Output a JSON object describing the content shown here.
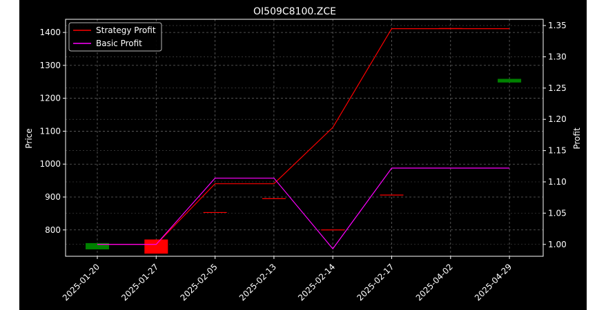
{
  "chart_data": {
    "type": "candlestick+line",
    "title": "OI509C8100.ZCE",
    "ylabel_left": "Price",
    "ylabel_right": "Profit",
    "categories": [
      "2025-01-20",
      "2025-01-27",
      "2025-02-05",
      "2025-02-13",
      "2025-02-14",
      "2025-02-17",
      "2025-04-02",
      "2025-04-29"
    ],
    "ylim_left": [
      720,
      1440
    ],
    "yticks_left": [
      800,
      900,
      1000,
      1100,
      1200,
      1300,
      1400
    ],
    "ylim_right": [
      0.981,
      1.36
    ],
    "yticks_right": [
      1.0,
      1.05,
      1.1,
      1.15,
      1.2,
      1.25,
      1.3,
      1.35
    ],
    "grid": true,
    "legend_position": "top-left",
    "candles": [
      {
        "x": "2025-01-20",
        "open": 760,
        "close": 741,
        "color": "#008000"
      },
      {
        "x": "2025-01-27",
        "open": 771,
        "close": 728,
        "color": "#ff0000"
      },
      {
        "x": "2025-02-05",
        "open": 853,
        "close": 853,
        "color": "#ff0000"
      },
      {
        "x": "2025-02-13",
        "open": 895,
        "close": 895,
        "color": "#ff0000"
      },
      {
        "x": "2025-02-14",
        "open": 800,
        "close": 800,
        "color": "#ff0000"
      },
      {
        "x": "2025-02-17",
        "open": 906,
        "close": 906,
        "color": "#ff0000"
      },
      {
        "x": "2025-04-02",
        "open": 1412,
        "close": 1412,
        "color": "#ff0000"
      },
      {
        "x": "2025-04-29",
        "open": 1259,
        "close": 1248,
        "color": "#008000"
      }
    ],
    "series": [
      {
        "name": "Strategy Profit",
        "color": "#ff0000",
        "values": [
          1.0,
          1.0,
          1.097,
          1.097,
          1.187,
          1.345,
          1.345,
          1.345
        ]
      },
      {
        "name": "Basic Profit",
        "color": "#ff00ff",
        "values": [
          1.0,
          1.0,
          1.106,
          1.106,
          0.993,
          1.122,
          1.122,
          1.122
        ]
      }
    ]
  }
}
